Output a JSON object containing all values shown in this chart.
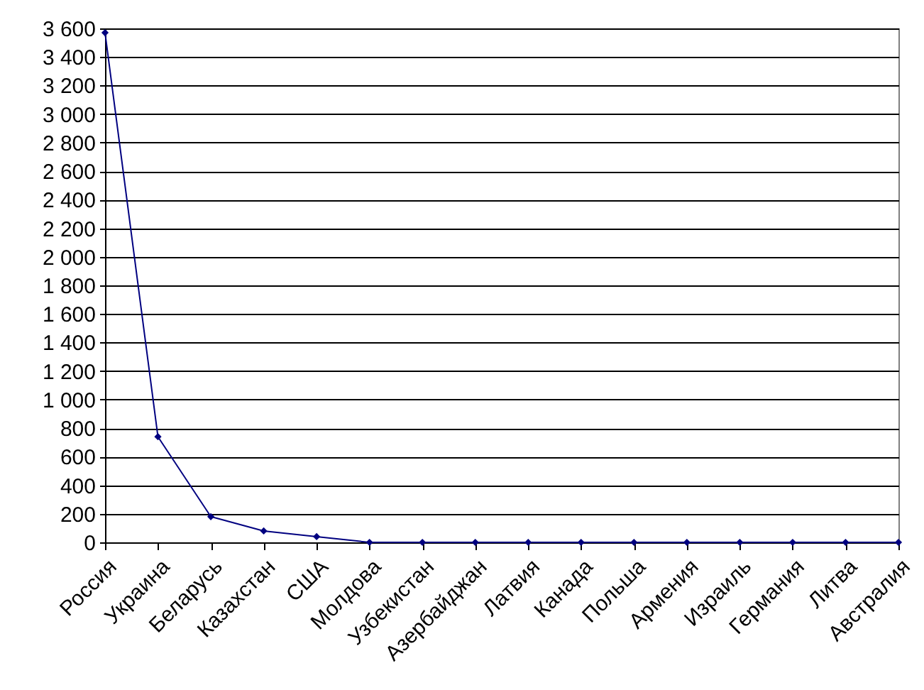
{
  "chart_data": {
    "type": "line",
    "categories": [
      "Россия",
      "Украина",
      "Беларусь",
      "Казахстан",
      "США",
      "Молдова",
      "Узбекистан",
      "Азербайджан",
      "Латвия",
      "Канада",
      "Польша",
      "Армения",
      "Израиль",
      "Германия",
      "Литва",
      "Австралия"
    ],
    "series": [
      {
        "color": "#000080",
        "values": [
          3570,
          740,
          180,
          80,
          40,
          0,
          0,
          0,
          0,
          0,
          0,
          0,
          0,
          0,
          0,
          0
        ]
      }
    ],
    "ylim": [
      0,
      3600
    ],
    "yticks": [
      0,
      200,
      400,
      600,
      800,
      {
        "value": 1000,
        "label": "1 000"
      },
      {
        "value": 1200,
        "label": "1 200"
      },
      {
        "value": 1400,
        "label": "1 400"
      },
      {
        "value": 1600,
        "label": "1 600"
      },
      {
        "value": 1800,
        "label": "1 800"
      },
      {
        "value": 2000,
        "label": "2 000"
      },
      {
        "value": 2200,
        "label": "2 200"
      },
      {
        "value": 2400,
        "label": "2 400"
      },
      {
        "value": 2600,
        "label": "2 600"
      },
      {
        "value": 2800,
        "label": "2 800"
      },
      {
        "value": 3000,
        "label": "3 000"
      },
      {
        "value": 3200,
        "label": "3 200"
      },
      {
        "value": 3400,
        "label": "3 400"
      },
      {
        "value": 3600,
        "label": "3 600"
      }
    ],
    "grid": "y",
    "marker": "diamond",
    "line_style": "solid"
  }
}
